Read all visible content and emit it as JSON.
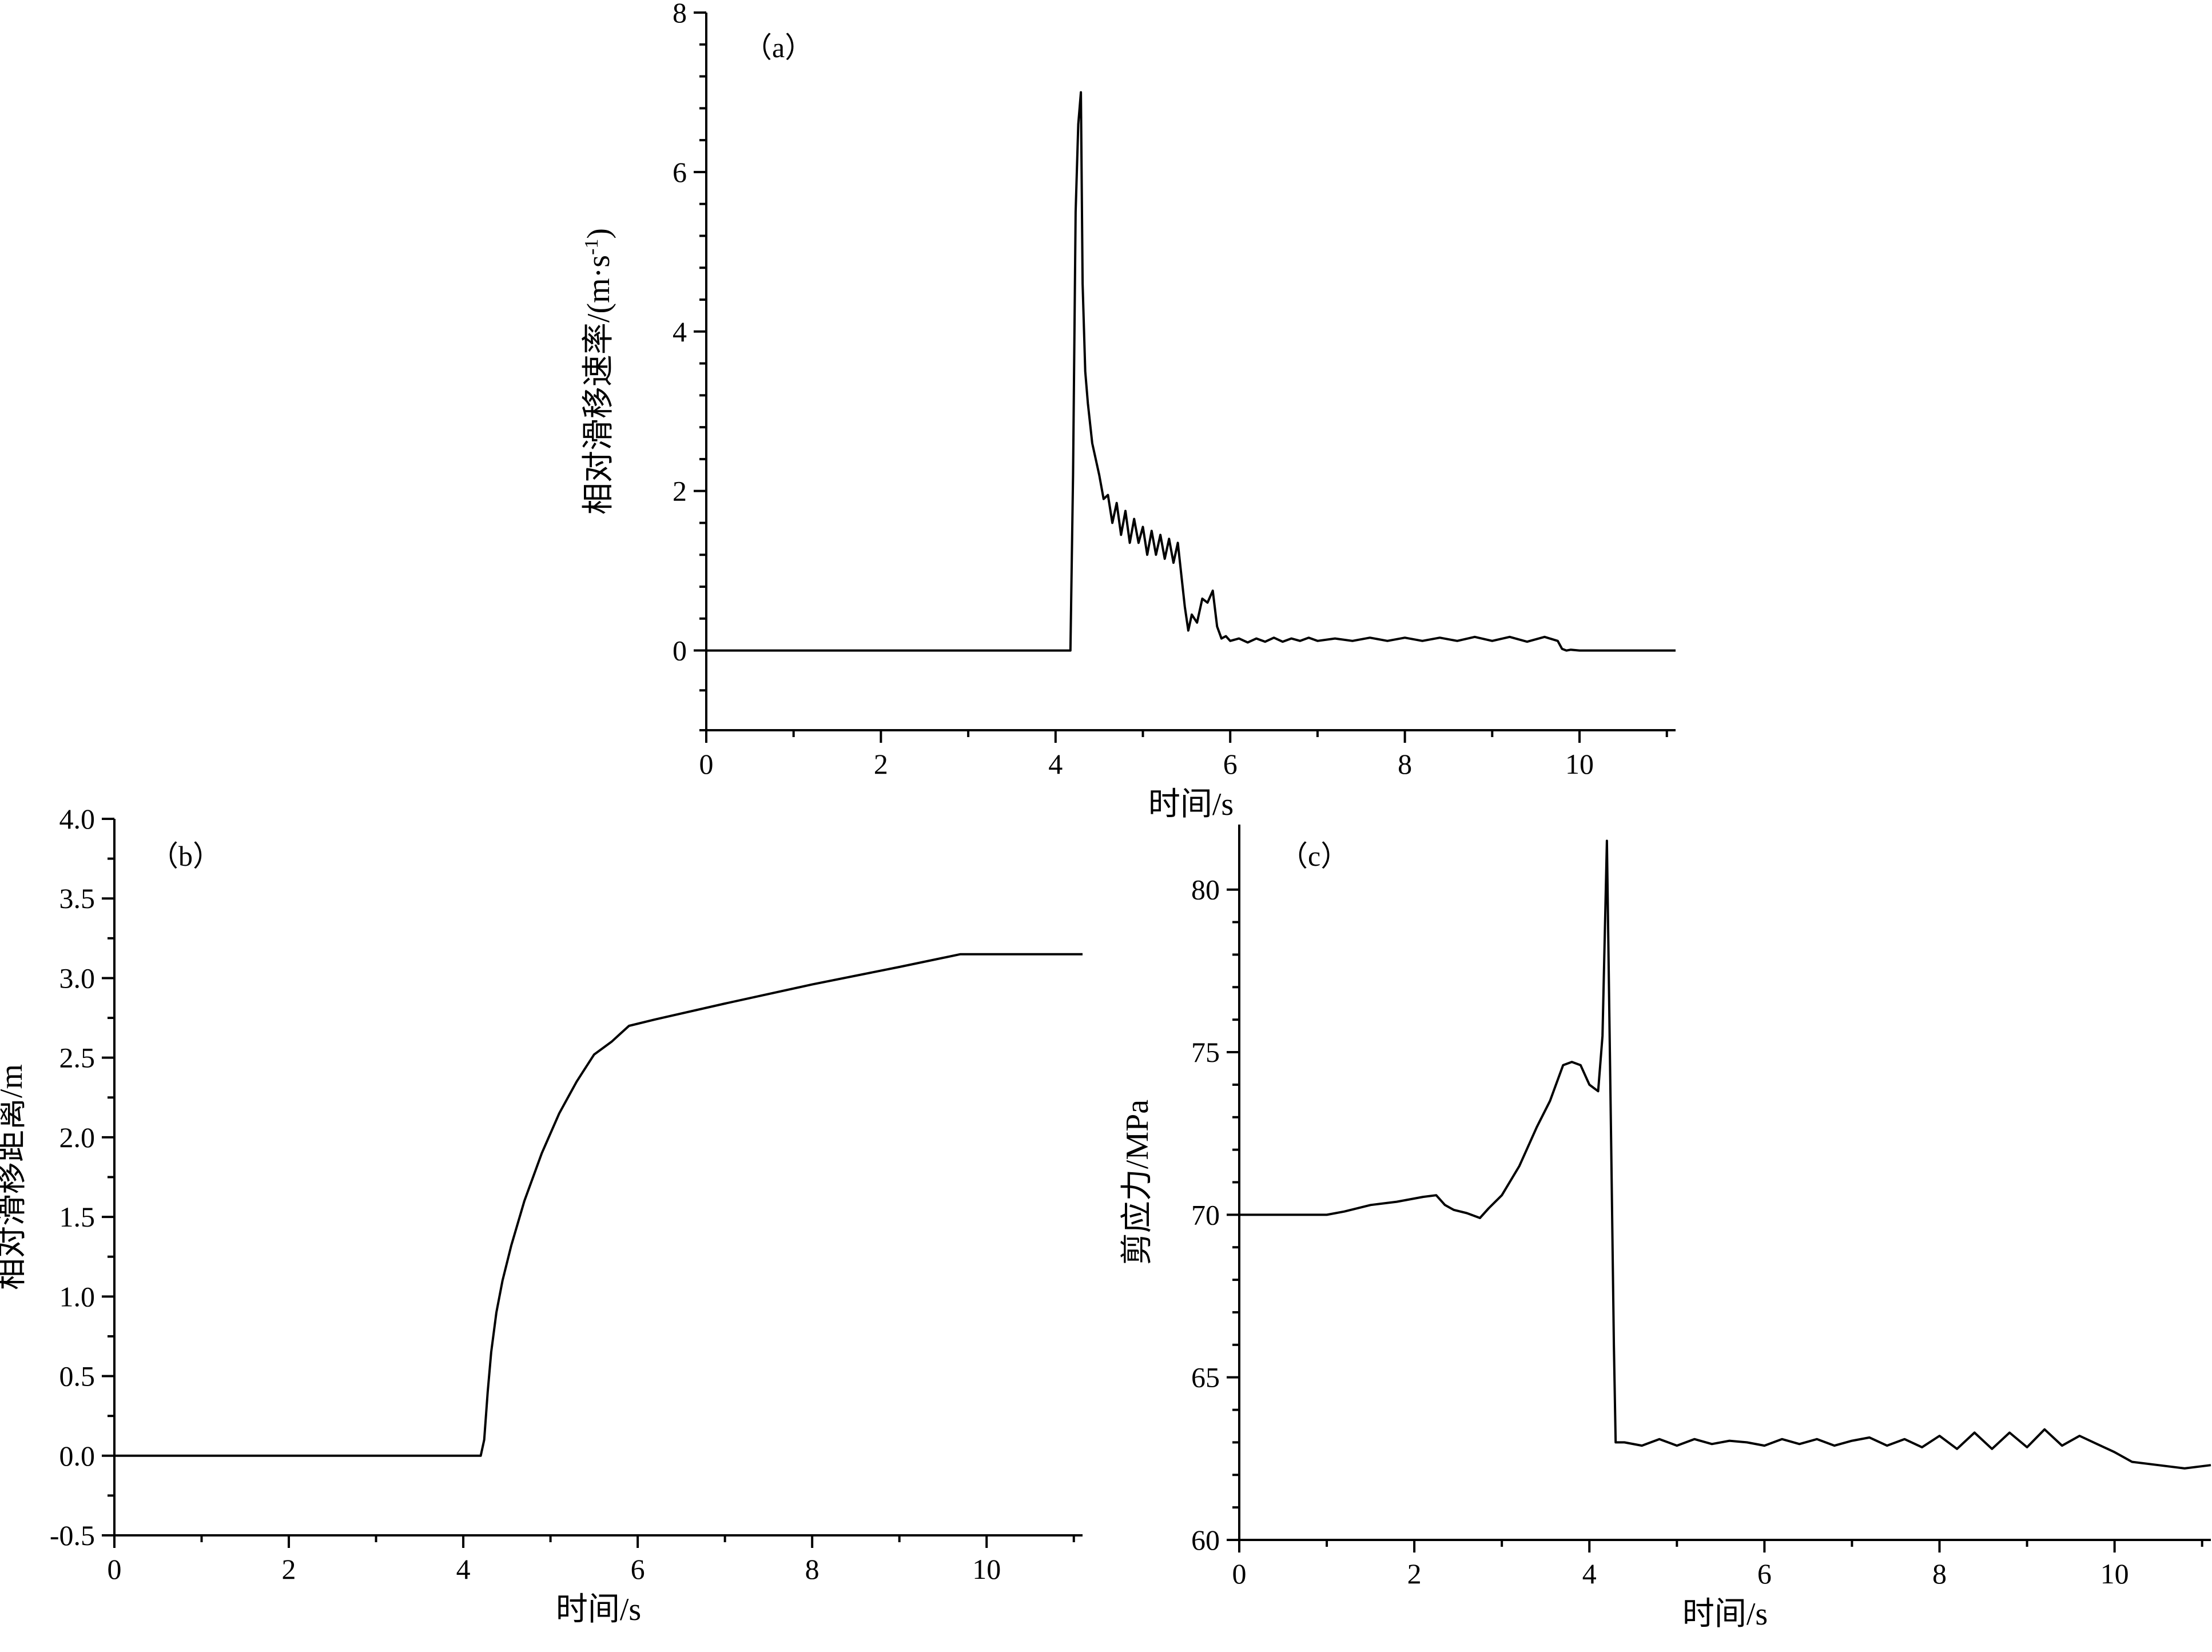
{
  "chart_data": [
    {
      "type": "line",
      "panel_label": "（a）",
      "xlabel": "时间/s",
      "ylabel_main": "相对滑移速率/(m·s",
      "ylabel_sup": "-1",
      "ylabel_end": ")",
      "xlim": [
        0,
        11.1
      ],
      "ylim": [
        -1,
        8
      ],
      "xticks": [
        0,
        2,
        4,
        6,
        8,
        10
      ],
      "xtick_labels": [
        "0",
        "2",
        "4",
        "6",
        "8",
        "10"
      ],
      "yticks": [
        0,
        2,
        4,
        6,
        8
      ],
      "ytick_labels": [
        "0",
        "2",
        "4",
        "6",
        "8"
      ],
      "grid": false,
      "x": [
        0,
        1,
        2,
        3,
        4,
        4.17,
        4.2,
        4.23,
        4.26,
        4.29,
        4.31,
        4.34,
        4.37,
        4.42,
        4.5,
        4.55,
        4.6,
        4.65,
        4.7,
        4.75,
        4.8,
        4.85,
        4.9,
        4.95,
        5.0,
        5.05,
        5.1,
        5.15,
        5.2,
        5.25,
        5.3,
        5.35,
        5.4,
        5.45,
        5.48,
        5.52,
        5.56,
        5.62,
        5.68,
        5.74,
        5.8,
        5.85,
        5.9,
        5.95,
        6.0,
        6.1,
        6.2,
        6.3,
        6.4,
        6.5,
        6.6,
        6.7,
        6.8,
        6.9,
        7.0,
        7.2,
        7.4,
        7.6,
        7.8,
        8.0,
        8.2,
        8.4,
        8.6,
        8.8,
        9.0,
        9.2,
        9.4,
        9.6,
        9.75,
        9.8,
        9.85,
        9.9,
        10.0,
        11.1
      ],
      "y": [
        0,
        0,
        0,
        0,
        0,
        0,
        2.2,
        5.5,
        6.6,
        7.0,
        4.6,
        3.5,
        3.1,
        2.6,
        2.2,
        1.9,
        1.95,
        1.6,
        1.85,
        1.45,
        1.75,
        1.35,
        1.65,
        1.35,
        1.55,
        1.2,
        1.5,
        1.2,
        1.45,
        1.15,
        1.4,
        1.1,
        1.35,
        0.85,
        0.55,
        0.25,
        0.45,
        0.35,
        0.65,
        0.6,
        0.75,
        0.3,
        0.15,
        0.18,
        0.12,
        0.15,
        0.1,
        0.15,
        0.11,
        0.16,
        0.11,
        0.15,
        0.12,
        0.16,
        0.12,
        0.15,
        0.12,
        0.16,
        0.12,
        0.16,
        0.12,
        0.16,
        0.12,
        0.17,
        0.12,
        0.17,
        0.11,
        0.17,
        0.12,
        0.02,
        0.0,
        0.01,
        0,
        0
      ]
    },
    {
      "type": "line",
      "panel_label": "（b）",
      "xlabel": "时间/s",
      "ylabel": "相对滑移距离/m",
      "xlim": [
        0,
        11.1
      ],
      "ylim": [
        -0.5,
        4.0
      ],
      "xticks": [
        0,
        2,
        4,
        6,
        8,
        10
      ],
      "xtick_labels": [
        "0",
        "2",
        "4",
        "6",
        "8",
        "10"
      ],
      "yticks": [
        -0.5,
        0,
        0.5,
        1.0,
        1.5,
        2.0,
        2.5,
        3.0,
        3.5,
        4.0
      ],
      "ytick_labels": [
        "-0.5",
        "0.0",
        "0.5",
        "1.0",
        "1.5",
        "2.0",
        "2.5",
        "3.0",
        "3.5",
        "4.0"
      ],
      "grid": false,
      "x": [
        0,
        1,
        2,
        3,
        4,
        4.2,
        4.24,
        4.28,
        4.32,
        4.38,
        4.45,
        4.55,
        4.7,
        4.9,
        5.1,
        5.3,
        5.5,
        5.6,
        5.7,
        5.8,
        5.9,
        6.2,
        7,
        8,
        9,
        9.7,
        10,
        11.1
      ],
      "y": [
        0,
        0,
        0,
        0,
        0,
        0,
        0.1,
        0.4,
        0.65,
        0.9,
        1.1,
        1.32,
        1.6,
        1.9,
        2.15,
        2.35,
        2.52,
        2.56,
        2.6,
        2.65,
        2.7,
        2.74,
        2.84,
        2.96,
        3.07,
        3.15,
        3.15,
        3.15
      ]
    },
    {
      "type": "line",
      "panel_label": "（c）",
      "xlabel": "时间/s",
      "ylabel": "剪应力/MPa",
      "xlim": [
        0,
        11.1
      ],
      "ylim": [
        60,
        82
      ],
      "xticks": [
        0,
        2,
        4,
        6,
        8,
        10
      ],
      "xtick_labels": [
        "0",
        "2",
        "4",
        "6",
        "8",
        "10"
      ],
      "yticks": [
        60,
        65,
        70,
        75,
        80
      ],
      "ytick_labels": [
        "60",
        "65",
        "70",
        "75",
        "80"
      ],
      "grid": false,
      "x": [
        0,
        0.5,
        1.0,
        1.2,
        1.5,
        1.8,
        2.1,
        2.25,
        2.35,
        2.45,
        2.6,
        2.75,
        2.85,
        3.0,
        3.2,
        3.4,
        3.55,
        3.7,
        3.8,
        3.9,
        4.0,
        4.05,
        4.1,
        4.15,
        4.2,
        4.25,
        4.28,
        4.3,
        4.4,
        4.6,
        4.8,
        5.0,
        5.2,
        5.4,
        5.6,
        5.8,
        6.0,
        6.2,
        6.4,
        6.6,
        6.8,
        7.0,
        7.2,
        7.4,
        7.6,
        7.8,
        8.0,
        8.2,
        8.4,
        8.6,
        8.8,
        9.0,
        9.2,
        9.4,
        9.6,
        9.8,
        10.0,
        10.2,
        10.5,
        10.8,
        11.1
      ],
      "y": [
        70.0,
        70.0,
        70.0,
        70.1,
        70.3,
        70.4,
        70.55,
        70.6,
        70.3,
        70.15,
        70.05,
        69.9,
        70.2,
        70.6,
        71.5,
        72.7,
        73.5,
        74.6,
        74.7,
        74.6,
        74.0,
        73.9,
        73.8,
        75.5,
        81.5,
        72.0,
        66.0,
        63.0,
        63.0,
        62.9,
        63.1,
        62.9,
        63.1,
        62.95,
        63.05,
        63.0,
        62.9,
        63.1,
        62.95,
        63.1,
        62.9,
        63.05,
        63.15,
        62.9,
        63.1,
        62.85,
        63.2,
        62.8,
        63.3,
        62.8,
        63.3,
        62.85,
        63.4,
        62.9,
        63.2,
        62.95,
        62.7,
        62.4,
        62.3,
        62.2,
        62.3
      ]
    }
  ]
}
